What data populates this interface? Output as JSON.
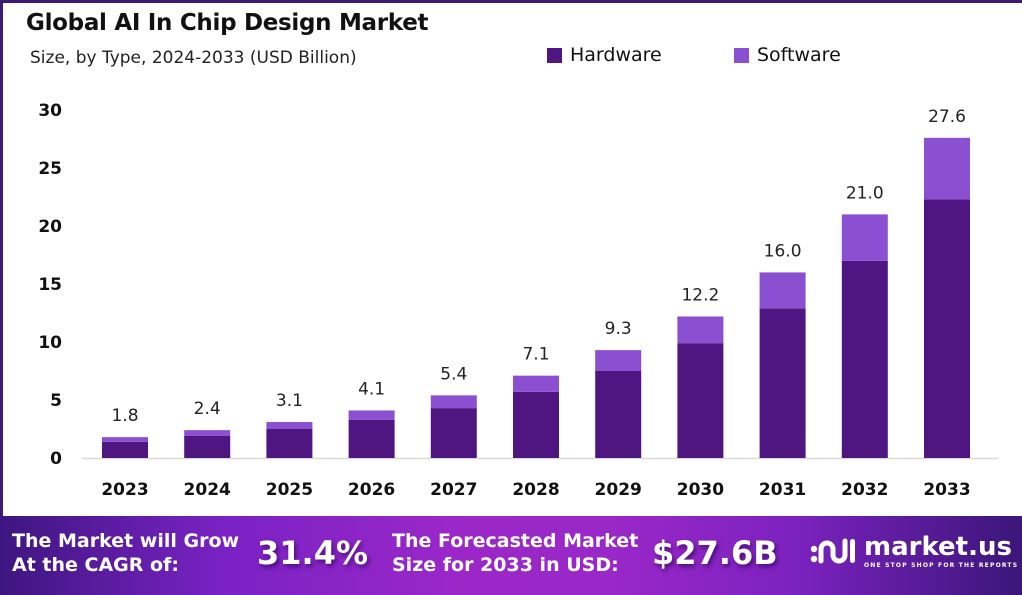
{
  "header": {
    "title": "Global AI In Chip Design Market",
    "subtitle": "Size, by Type, 2024-2033 (USD Billion)"
  },
  "legend": [
    {
      "label": "Hardware",
      "color": "#4f1681"
    },
    {
      "label": "Software",
      "color": "#8b4fd1"
    }
  ],
  "chart_data": {
    "type": "bar",
    "stacked": true,
    "title": "Global AI In Chip Design Market",
    "subtitle": "Size, by Type, 2024-2033 (USD Billion)",
    "xlabel": "",
    "ylabel": "",
    "categories": [
      "2023",
      "2024",
      "2025",
      "2026",
      "2027",
      "2028",
      "2029",
      "2030",
      "2031",
      "2032",
      "2033"
    ],
    "series": [
      {
        "name": "Hardware",
        "color": "#4f1681",
        "values": [
          1.4,
          1.9,
          2.5,
          3.3,
          4.3,
          5.7,
          7.5,
          9.9,
          12.9,
          17.0,
          22.3
        ]
      },
      {
        "name": "Software",
        "color": "#8b4fd1",
        "values": [
          0.4,
          0.5,
          0.6,
          0.8,
          1.1,
          1.4,
          1.8,
          2.3,
          3.1,
          4.0,
          5.3
        ]
      }
    ],
    "totals": [
      1.8,
      2.4,
      3.1,
      4.1,
      5.4,
      7.1,
      9.3,
      12.2,
      16.0,
      21.0,
      27.6
    ],
    "total_labels": [
      "1.8",
      "2.4",
      "3.1",
      "4.1",
      "5.4",
      "7.1",
      "9.3",
      "12.2",
      "16.0",
      "21.0",
      "27.6"
    ],
    "ylim": [
      0,
      30
    ],
    "yticks": [
      0,
      5,
      10,
      15,
      20,
      25,
      30
    ],
    "grid": false,
    "legend_position": "top-right"
  },
  "footer": {
    "cagr_text_line1": "The Market will Grow",
    "cagr_text_line2": "At the CAGR of:",
    "cagr_value": "31.4%",
    "forecast_text_line1": "The Forecasted Market",
    "forecast_text_line2": "Size for 2033 in USD:",
    "forecast_value": "$27.6B",
    "brand_name": "market.us",
    "brand_tagline": "ONE STOP SHOP FOR THE REPORTS"
  }
}
